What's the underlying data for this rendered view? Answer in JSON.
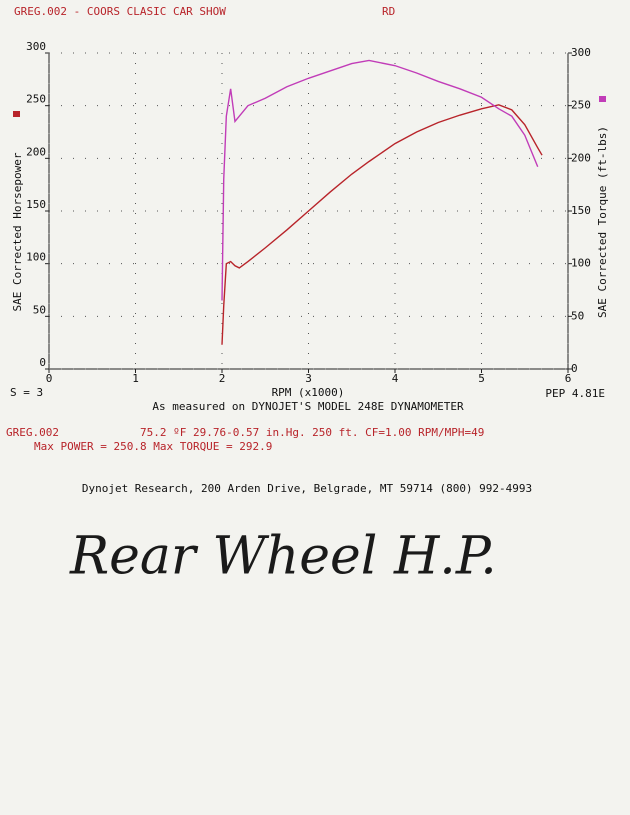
{
  "header": {
    "title": "GREG.002 - COORS CLASIC CAR SHOW",
    "operator": "RD"
  },
  "chart_data": {
    "type": "line",
    "note": "As measured on DYNOJET'S MODEL 248E DYNAMOMETER",
    "xlabel": "RPM (x1000)",
    "ylabel": "SAE Corrected Horsepower",
    "y2label": "SAE Corrected Torque (ft-lbs)",
    "annotations": [
      "S = 3",
      "PEP 4.81E"
    ],
    "x": [
      2.0,
      2.02,
      2.05,
      2.1,
      2.15,
      2.2,
      2.3,
      2.5,
      2.75,
      3.0,
      3.25,
      3.5,
      3.7,
      4.0,
      4.25,
      4.5,
      4.75,
      5.0,
      5.2,
      5.35,
      5.5,
      5.65,
      5.7
    ],
    "series": [
      {
        "color": "#b8242a",
        "values": [
          23,
          60,
          100,
          102,
          98,
          96,
          102,
          115,
          132,
          150,
          168,
          185,
          197,
          214,
          225,
          234,
          241,
          247,
          250.8,
          246,
          232,
          210,
          203
        ]
      },
      {
        "color": "#c13cb8",
        "axis": "y2",
        "values": [
          65,
          180,
          240,
          266,
          235,
          240,
          250,
          257,
          268,
          276,
          283,
          290,
          292.9,
          288,
          281,
          273,
          266,
          258,
          247,
          240,
          222,
          192,
          null
        ]
      }
    ],
    "xlim": [
      0,
      6
    ],
    "xticks": [
      0,
      1,
      2,
      3,
      4,
      5,
      6
    ],
    "ylim": [
      0,
      300
    ],
    "yticks": [
      0,
      50,
      100,
      150,
      200,
      250,
      300
    ],
    "y2lim": [
      0,
      300
    ],
    "y2ticks": [
      0,
      50,
      100,
      150,
      200,
      250,
      300
    ],
    "grid": true
  },
  "run_info": {
    "run": "GREG.002",
    "conditions": "75.2 ºF  29.76-0.57 in.Hg.  250 ft.  CF=1.00  RPM/MPH=49",
    "max_line": "Max POWER = 250.8  Max TORQUE = 292.9"
  },
  "footer": "Dynojet Research, 200 Arden Drive, Belgrade, MT 59714 (800) 992-4993",
  "handwritten": "Rear Wheel H.P."
}
